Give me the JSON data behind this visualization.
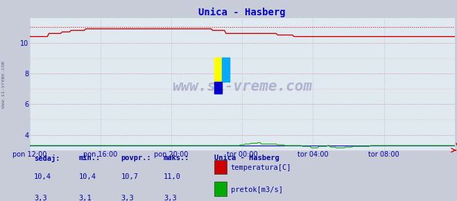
{
  "title": "Unica - Hasberg",
  "title_color": "#0000cc",
  "bg_color": "#c8ccd8",
  "plot_bg_color": "#e0e8f0",
  "x_tick_labels": [
    "pon 12:00",
    "pon 16:00",
    "pon 20:00",
    "tor 00:00",
    "tor 04:00",
    "tor 08:00"
  ],
  "x_tick_positions": [
    0.0,
    0.1667,
    0.3333,
    0.5,
    0.6667,
    0.8333
  ],
  "ylim": [
    3.0,
    11.6
  ],
  "yticks": [
    4,
    6,
    8,
    10
  ],
  "temp_color": "#cc0000",
  "flow_color": "#00aa00",
  "height_color": "#0000cc",
  "temp_max_line": 11.0,
  "watermark_text": "www.si-vreme.com",
  "watermark_color": "#000066",
  "legend_title": "Unica - Hasberg",
  "legend_labels": [
    "temperatura[C]",
    "pretok[m3/s]"
  ],
  "legend_colors": [
    "#cc0000",
    "#00aa00"
  ],
  "stats_headers": [
    "sedaj:",
    "min.:",
    "povpr.:",
    "maks.:"
  ],
  "stats_temp": [
    "10,4",
    "10,4",
    "10,7",
    "11,0"
  ],
  "stats_flow": [
    "3,3",
    "3,1",
    "3,3",
    "3,3"
  ],
  "stats_color": "#0000aa",
  "n_points": 289
}
